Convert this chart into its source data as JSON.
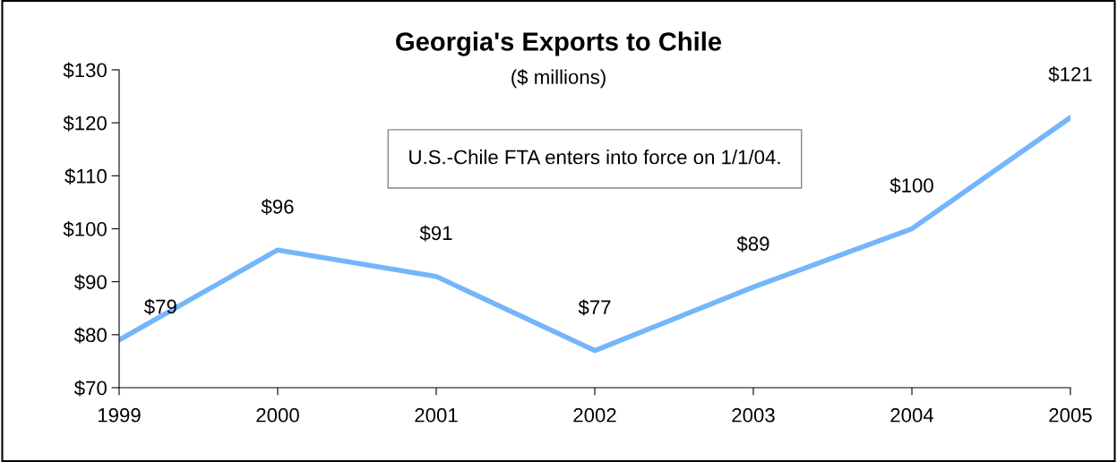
{
  "chart_data": {
    "type": "line",
    "title": "Georgia's Exports to Chile",
    "subtitle": "($ millions)",
    "x": [
      1999,
      2000,
      2001,
      2002,
      2003,
      2004,
      2005
    ],
    "series": [
      {
        "color": "#74b6fa",
        "values": [
          79,
          96,
          91,
          77,
          89,
          100,
          121
        ],
        "value_labels": [
          "$79",
          "$96",
          "$91",
          "$77",
          "$89",
          "$100",
          "$121"
        ]
      }
    ],
    "xlim": [
      1999,
      2005
    ],
    "xticks": [
      1999,
      2000,
      2001,
      2002,
      2003,
      2004,
      2005
    ],
    "ylim": [
      70,
      130
    ],
    "yticks": [
      {
        "value": 70,
        "label": "$70"
      },
      {
        "value": 80,
        "label": "$80"
      },
      {
        "value": 90,
        "label": "$90"
      },
      {
        "value": 100,
        "label": "$100"
      },
      {
        "value": 110,
        "label": "$110"
      },
      {
        "value": 120,
        "label": "$120"
      },
      {
        "value": 130,
        "label": "$130"
      }
    ],
    "grid": false,
    "legend": false,
    "marker": "none",
    "line_style": "solid",
    "annotations": [
      "U.S.-Chile FTA enters into force on 1/1/04."
    ]
  }
}
